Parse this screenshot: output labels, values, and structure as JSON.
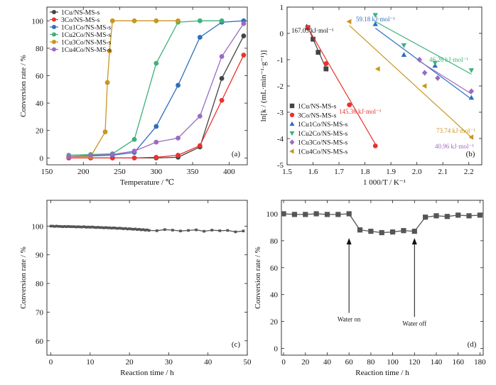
{
  "chart_data": [
    {
      "id": "a",
      "type": "line",
      "panel_label": "(a)",
      "xlabel": "Temperature / ℃",
      "ylabel": "Conversion rate / %",
      "xlim": [
        150,
        425
      ],
      "ylim": [
        -5,
        110
      ],
      "xticks": [
        150,
        200,
        250,
        300,
        350,
        400
      ],
      "yticks": [
        0,
        20,
        40,
        60,
        80,
        100
      ],
      "legend_position": "top-left",
      "series": [
        {
          "name": "1Cu/NS-MS-s",
          "color": "#444444",
          "marker": "circle",
          "x": [
            180,
            210,
            240,
            270,
            300,
            330,
            360,
            390,
            420
          ],
          "y": [
            0,
            0,
            0,
            0,
            0,
            0.5,
            8,
            58,
            89
          ]
        },
        {
          "name": "3Co/NS-MS-s",
          "color": "#e8332e",
          "marker": "circle",
          "x": [
            180,
            210,
            240,
            270,
            300,
            330,
            360,
            390,
            420
          ],
          "y": [
            0,
            0,
            0,
            0,
            0.5,
            2,
            9,
            42,
            75
          ]
        },
        {
          "name": "1Cu1Co/NS-MS-s",
          "color": "#2e6fbf",
          "marker": "circle",
          "x": [
            180,
            210,
            240,
            270,
            300,
            330,
            360,
            390,
            420
          ],
          "y": [
            1,
            1.5,
            2,
            4,
            23,
            53,
            88,
            99,
            100
          ]
        },
        {
          "name": "1Cu2Co/NS-MS-s",
          "color": "#3cb27a",
          "marker": "circle",
          "x": [
            180,
            210,
            240,
            270,
            300,
            330,
            360,
            390
          ],
          "y": [
            2,
            2.5,
            3,
            13.5,
            69,
            99,
            100,
            100
          ]
        },
        {
          "name": "1Cu3Co/NS-MS-s",
          "color": "#c9961e",
          "marker": "circle",
          "x": [
            180,
            210,
            230,
            233,
            236,
            240,
            270,
            300,
            330
          ],
          "y": [
            1,
            1,
            19,
            55,
            78,
            100,
            100,
            100,
            100
          ]
        },
        {
          "name": "1Cu4Co/NS-MS-s",
          "color": "#9b6bc0",
          "marker": "circle",
          "x": [
            180,
            210,
            240,
            270,
            300,
            330,
            360,
            390,
            420
          ],
          "y": [
            1,
            2,
            2.5,
            5,
            11.5,
            14.5,
            30.5,
            74,
            98
          ]
        }
      ]
    },
    {
      "id": "b",
      "type": "scatter",
      "panel_label": "(b)",
      "xlabel": "1 000/T / K⁻¹",
      "ylabel": "ln[k / (mL·min⁻¹·g⁻¹)]",
      "xlim": [
        1.5,
        2.25
      ],
      "ylim": [
        -5,
        1
      ],
      "xticks": [
        1.5,
        1.6,
        1.7,
        1.8,
        1.9,
        2.0,
        2.1,
        2.2
      ],
      "xtick_labels": [
        "1.5",
        "1.6",
        "1.7",
        "1.8",
        "1.9",
        "2.0",
        "2.1",
        "2.2"
      ],
      "yticks": [
        -5,
        -4,
        -3,
        -2,
        -1,
        0,
        1
      ],
      "legend_position": "bottom-left",
      "series": [
        {
          "name": "1Cu/NS-MS-s",
          "color": "#444444",
          "marker": "square",
          "x": [
            1.58,
            1.6,
            1.62,
            1.65
          ],
          "y": [
            0.22,
            -0.22,
            -0.72,
            -1.35
          ],
          "fit": [
            [
              1.575,
              0.35
            ],
            [
              1.655,
              -1.45
            ]
          ],
          "energy": "167.03 kJ·mol⁻¹"
        },
        {
          "name": "3Co/NS-MS-s",
          "color": "#e8332e",
          "marker": "circle",
          "x": [
            1.58,
            1.65,
            1.74,
            1.84
          ],
          "y": [
            0.22,
            -1.15,
            -2.72,
            -4.28
          ],
          "fit": [
            [
              1.575,
              0.3
            ],
            [
              1.845,
              -4.3
            ]
          ],
          "energy": "145.36 kJ·mol⁻¹"
        },
        {
          "name": "1Cu1Co/NS-MS-s",
          "color": "#2e6fbf",
          "marker": "triangle-up",
          "x": [
            1.84,
            1.95,
            2.07,
            2.21
          ],
          "y": [
            0.35,
            -0.82,
            -1.23,
            -2.45
          ],
          "fit": [
            [
              1.84,
              0.2
            ],
            [
              2.21,
              -2.5
            ]
          ],
          "energy": "59.18 kJ·mol⁻¹"
        },
        {
          "name": "1Cu2Co/NS-MS-s",
          "color": "#3cb27a",
          "marker": "triangle-down",
          "x": [
            1.84,
            1.95,
            2.07,
            2.21
          ],
          "y": [
            0.7,
            -0.45,
            -1.12,
            -1.4
          ],
          "fit": [
            [
              1.84,
              0.45
            ],
            [
              2.21,
              -1.55
            ]
          ],
          "energy": "46.26 kJ·mol⁻¹"
        },
        {
          "name": "1Cu3Co/NS-MS-s",
          "color": "#9b6bc0",
          "marker": "diamond",
          "x": [
            2.01,
            2.03,
            2.08,
            2.21
          ],
          "y": [
            -1.0,
            -1.5,
            -1.7,
            -2.2
          ],
          "fit": [
            [
              2.0,
              -1.0
            ],
            [
              2.21,
              -2.3
            ]
          ],
          "energy": "40.96 kJ·mol⁻¹"
        },
        {
          "name": "1Cu4Co/NS-MS-s",
          "color": "#c9961e",
          "marker": "triangle-left",
          "x": [
            1.74,
            1.85,
            2.03,
            2.21
          ],
          "y": [
            0.45,
            -1.35,
            -2.0,
            -3.95
          ],
          "fit": [
            [
              1.74,
              0.3
            ],
            [
              2.21,
              -3.95
            ]
          ],
          "energy": "73.74 kJ·mol⁻¹"
        }
      ]
    },
    {
      "id": "c",
      "type": "line",
      "panel_label": "(c)",
      "xlabel": "Reaction time / h",
      "ylabel": "Conversion rate / %",
      "xlim": [
        -1,
        50
      ],
      "ylim": [
        55,
        109
      ],
      "xticks": [
        0,
        10,
        20,
        30,
        40,
        50
      ],
      "yticks": [
        60,
        70,
        80,
        90,
        100
      ],
      "series": [
        {
          "name": "",
          "color": "#555555",
          "marker": "square-small",
          "x": [
            0,
            0.5,
            1,
            1.5,
            2,
            2.5,
            3,
            3.5,
            4,
            4.5,
            5,
            5.5,
            6,
            6.5,
            7,
            7.5,
            8,
            8.5,
            9,
            9.5,
            10,
            10.5,
            11,
            11.5,
            12,
            12.5,
            13,
            13.5,
            14,
            14.5,
            15,
            15.5,
            16,
            16.5,
            17,
            17.5,
            18,
            18.5,
            19,
            19.5,
            20,
            20.5,
            21,
            21.5,
            22,
            22.5,
            23,
            23.5,
            24,
            24.5,
            25,
            27,
            29,
            31,
            33,
            35,
            37,
            39,
            41,
            43,
            45,
            47,
            49
          ],
          "y": [
            100,
            100,
            99.9,
            100,
            99.9,
            99.9,
            99.8,
            99.9,
            99.8,
            99.9,
            99.8,
            99.8,
            99.8,
            99.7,
            99.8,
            99.7,
            99.7,
            99.8,
            99.6,
            99.7,
            99.6,
            99.7,
            99.6,
            99.5,
            99.6,
            99.5,
            99.5,
            99.4,
            99.5,
            99.4,
            99.4,
            99.3,
            99.4,
            99.3,
            99.2,
            99.3,
            99.2,
            99.1,
            99.2,
            99.0,
            99.1,
            99.0,
            98.9,
            99.0,
            98.8,
            98.9,
            98.7,
            98.8,
            98.6,
            98.7,
            98.5,
            98.4,
            98.8,
            98.6,
            98.3,
            98.5,
            98.7,
            98.2,
            98.6,
            98.4,
            98.5,
            98.0,
            98.3
          ]
        }
      ]
    },
    {
      "id": "d",
      "type": "line",
      "panel_label": "(d)",
      "xlabel": "Reaction time / h",
      "ylabel": "Conversion rate / %",
      "xlim": [
        -2,
        183
      ],
      "ylim": [
        -5,
        110
      ],
      "xticks": [
        0,
        20,
        40,
        60,
        80,
        100,
        120,
        140,
        160,
        180
      ],
      "yticks": [
        0,
        20,
        40,
        60,
        80,
        100
      ],
      "annotations": [
        {
          "text": "Water on",
          "x": 60,
          "y_arrow_tip": 82,
          "y_text": 20
        },
        {
          "text": "Water off",
          "x": 120,
          "y_arrow_tip": 82,
          "y_text": 17
        }
      ],
      "series": [
        {
          "name": "",
          "color": "#555555",
          "marker": "square",
          "x": [
            0,
            10,
            20,
            30,
            40,
            50,
            60,
            70,
            80,
            90,
            100,
            110,
            120,
            130,
            140,
            150,
            160,
            170,
            180
          ],
          "y": [
            100,
            99.5,
            99.5,
            100,
            99.5,
            99.5,
            100,
            88,
            87,
            86,
            86.5,
            87.5,
            87,
            97.5,
            98.5,
            98,
            99,
            98.5,
            99
          ]
        }
      ]
    }
  ]
}
